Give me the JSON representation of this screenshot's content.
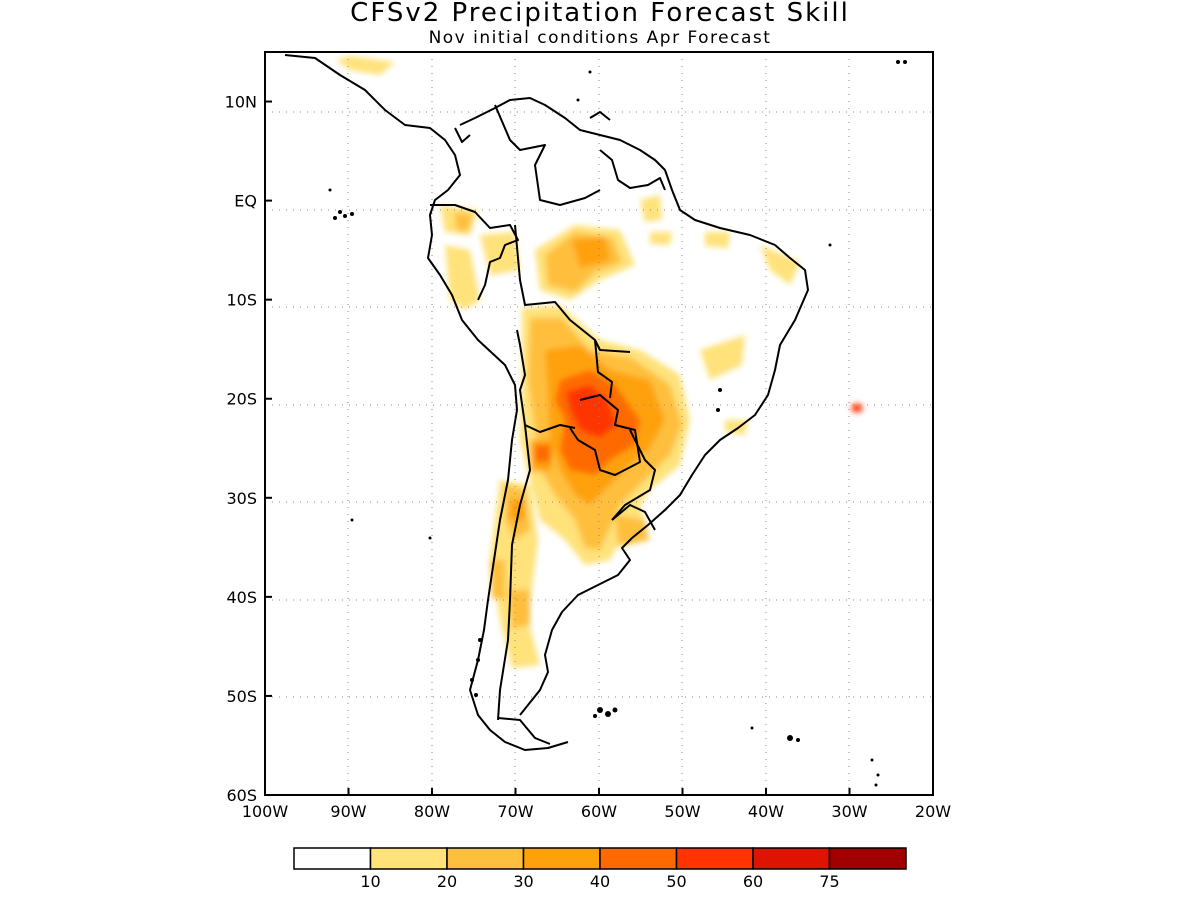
{
  "title": "CFSv2 Precipitation Forecast Skill",
  "subtitle": "Nov initial conditions  Apr Forecast",
  "map": {
    "region": "South America",
    "lon_range": [
      -100,
      -20
    ],
    "lat_range": [
      -60,
      15
    ],
    "grid": true,
    "lat_labels": [
      "10N",
      "EQ",
      "10S",
      "20S",
      "30S",
      "40S",
      "50S",
      "60S"
    ],
    "lon_labels": [
      "100W",
      "90W",
      "80W",
      "70W",
      "60W",
      "50W",
      "40W",
      "30W",
      "20W"
    ]
  },
  "colorbar": {
    "colors": [
      "#ffffff",
      "#ffe27a",
      "#ffbf3e",
      "#ffa10a",
      "#ff6a00",
      "#ff3400",
      "#dc1400",
      "#a00000"
    ],
    "labels": [
      "10",
      "20",
      "30",
      "40",
      "50",
      "60",
      "75"
    ],
    "thresholds": [
      10,
      20,
      30,
      40,
      50,
      60,
      75
    ]
  }
}
